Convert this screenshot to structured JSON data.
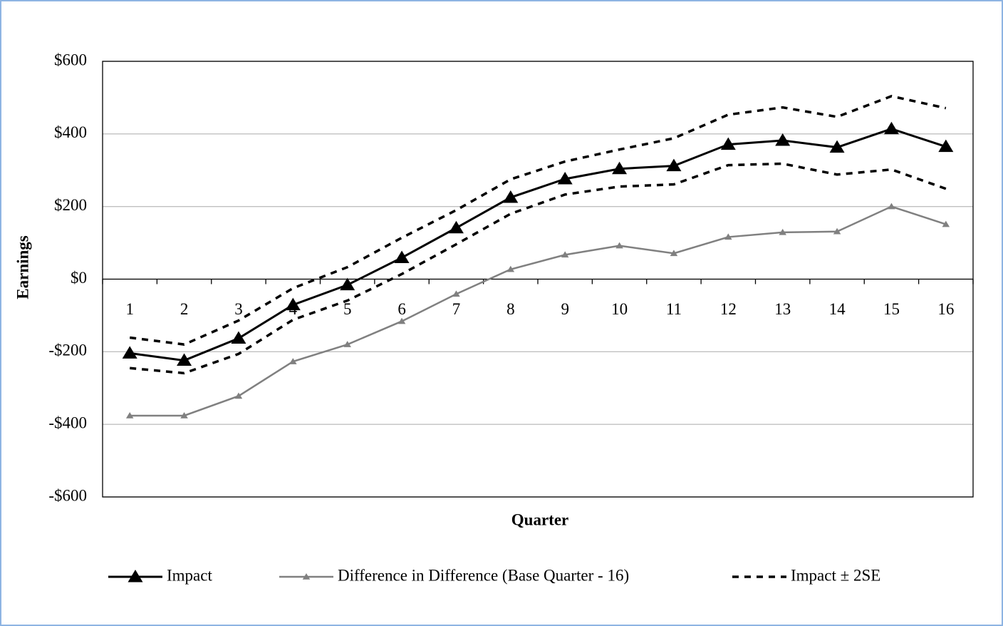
{
  "chart_data": {
    "type": "line",
    "x_label": "Quarter",
    "y_label": "Earnings",
    "categories": [
      "1",
      "2",
      "3",
      "4",
      "5",
      "6",
      "7",
      "8",
      "9",
      "10",
      "11",
      "12",
      "13",
      "14",
      "15",
      "16"
    ],
    "ylim": [
      -600,
      600
    ],
    "yticks": [
      {
        "value": -600,
        "label": "-$600"
      },
      {
        "value": -400,
        "label": "-$400"
      },
      {
        "value": -200,
        "label": "-$200"
      },
      {
        "value": 0,
        "label": "$0"
      },
      {
        "value": 200,
        "label": "$200"
      },
      {
        "value": 400,
        "label": "$400"
      },
      {
        "value": 600,
        "label": "$600"
      }
    ],
    "grid": true,
    "legend": "bottom",
    "series": [
      {
        "name": "Impact",
        "color": "#000000",
        "marker": "large-triangle",
        "values": [
          -204,
          -224,
          -163,
          -71,
          -16,
          59,
          141,
          225,
          276,
          304,
          312,
          371,
          382,
          363,
          414,
          365
        ]
      },
      {
        "name": "Difference in Difference (Base Quarter - 16)",
        "color": "#808080",
        "marker": "small-triangle",
        "values": [
          -376,
          -376,
          -322,
          -227,
          -180,
          -116,
          -41,
          27,
          67,
          92,
          71,
          116,
          129,
          131,
          200,
          151
        ]
      },
      {
        "name": "Impact ± 2SE",
        "color": "#000000",
        "style": "dashed",
        "upper": [
          -161,
          -180,
          -114,
          -25,
          33,
          114,
          190,
          275,
          324,
          357,
          388,
          453,
          473,
          447,
          504,
          471
        ],
        "lower": [
          -245,
          -259,
          -206,
          -112,
          -59,
          14,
          96,
          180,
          233,
          255,
          261,
          314,
          318,
          288,
          302,
          249
        ]
      }
    ]
  }
}
